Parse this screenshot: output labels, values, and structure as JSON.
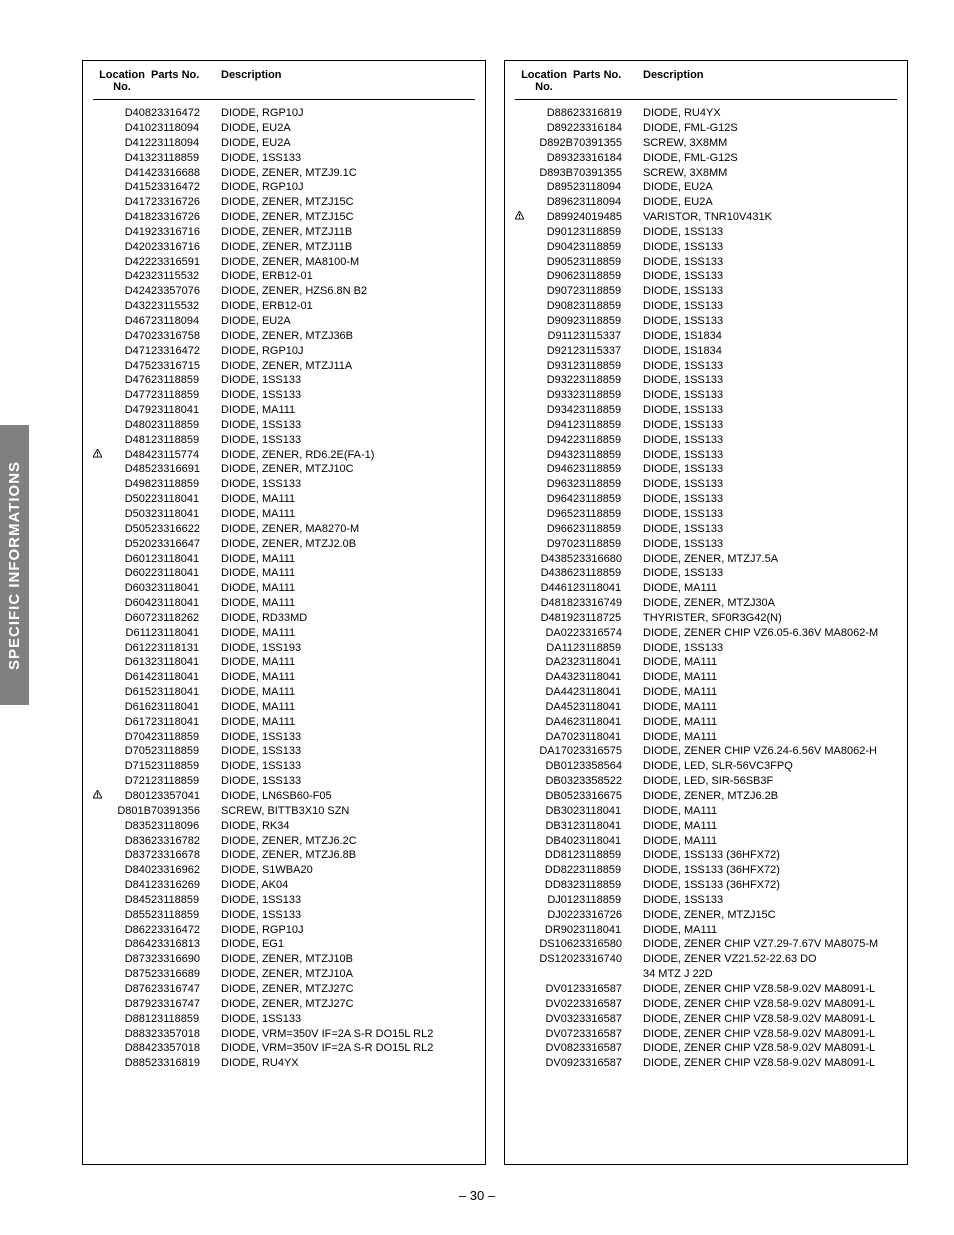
{
  "page_number": "– 30 –",
  "side_tab": "SPECIFIC INFORMATIONS",
  "columns": {
    "headers": {
      "location": "Location No.",
      "parts": "Parts No.",
      "description": "Description"
    }
  },
  "left": [
    {
      "w": false,
      "loc": "D408",
      "pn": "23316472",
      "desc": "DIODE, RGP10J"
    },
    {
      "w": false,
      "loc": "D410",
      "pn": "23118094",
      "desc": "DIODE, EU2A"
    },
    {
      "w": false,
      "loc": "D412",
      "pn": "23118094",
      "desc": "DIODE, EU2A"
    },
    {
      "w": false,
      "loc": "D413",
      "pn": "23118859",
      "desc": "DIODE, 1SS133"
    },
    {
      "w": false,
      "loc": "D414",
      "pn": "23316688",
      "desc": "DIODE, ZENER, MTZJ9.1C"
    },
    {
      "w": false,
      "loc": "D415",
      "pn": "23316472",
      "desc": "DIODE, RGP10J"
    },
    {
      "w": false,
      "loc": "D417",
      "pn": "23316726",
      "desc": "DIODE, ZENER, MTZJ15C"
    },
    {
      "w": false,
      "loc": "D418",
      "pn": "23316726",
      "desc": "DIODE, ZENER, MTZJ15C"
    },
    {
      "w": false,
      "loc": "D419",
      "pn": "23316716",
      "desc": "DIODE, ZENER, MTZJ11B"
    },
    {
      "w": false,
      "loc": "D420",
      "pn": "23316716",
      "desc": "DIODE, ZENER, MTZJ11B"
    },
    {
      "w": false,
      "loc": "D422",
      "pn": "23316591",
      "desc": "DIODE, ZENER, MA8100-M"
    },
    {
      "w": false,
      "loc": "D423",
      "pn": "23115532",
      "desc": "DIODE, ERB12-01"
    },
    {
      "w": false,
      "loc": "D424",
      "pn": "23357076",
      "desc": "DIODE, ZENER, HZS6.8N B2"
    },
    {
      "w": false,
      "loc": "D432",
      "pn": "23115532",
      "desc": "DIODE, ERB12-01"
    },
    {
      "w": false,
      "loc": "D467",
      "pn": "23118094",
      "desc": "DIODE, EU2A"
    },
    {
      "w": false,
      "loc": "D470",
      "pn": "23316758",
      "desc": "DIODE, ZENER, MTZJ36B"
    },
    {
      "w": false,
      "loc": "D471",
      "pn": "23316472",
      "desc": "DIODE, RGP10J"
    },
    {
      "w": false,
      "loc": "D475",
      "pn": "23316715",
      "desc": "DIODE, ZENER, MTZJ11A"
    },
    {
      "w": false,
      "loc": "D476",
      "pn": "23118859",
      "desc": "DIODE, 1SS133"
    },
    {
      "w": false,
      "loc": "D477",
      "pn": "23118859",
      "desc": "DIODE, 1SS133"
    },
    {
      "w": false,
      "loc": "D479",
      "pn": "23118041",
      "desc": "DIODE, MA111"
    },
    {
      "w": false,
      "loc": "D480",
      "pn": "23118859",
      "desc": "DIODE, 1SS133"
    },
    {
      "w": false,
      "loc": "D481",
      "pn": "23118859",
      "desc": "DIODE, 1SS133"
    },
    {
      "w": true,
      "loc": "D484",
      "pn": "23115774",
      "desc": "DIODE, ZENER, RD6.2E(FA-1)"
    },
    {
      "w": false,
      "loc": "D485",
      "pn": "23316691",
      "desc": "DIODE, ZENER, MTZJ10C"
    },
    {
      "w": false,
      "loc": "D498",
      "pn": "23118859",
      "desc": "DIODE, 1SS133"
    },
    {
      "w": false,
      "loc": "D502",
      "pn": "23118041",
      "desc": "DIODE, MA111"
    },
    {
      "w": false,
      "loc": "D503",
      "pn": "23118041",
      "desc": "DIODE, MA111"
    },
    {
      "w": false,
      "loc": "D505",
      "pn": "23316622",
      "desc": "DIODE, ZENER, MA8270-M"
    },
    {
      "w": false,
      "loc": "D520",
      "pn": "23316647",
      "desc": "DIODE, ZENER, MTZJ2.0B"
    },
    {
      "w": false,
      "loc": "D601",
      "pn": "23118041",
      "desc": "DIODE, MA111"
    },
    {
      "w": false,
      "loc": "D602",
      "pn": "23118041",
      "desc": "DIODE, MA111"
    },
    {
      "w": false,
      "loc": "D603",
      "pn": "23118041",
      "desc": "DIODE, MA111"
    },
    {
      "w": false,
      "loc": "D604",
      "pn": "23118041",
      "desc": "DIODE, MA111"
    },
    {
      "w": false,
      "loc": "D607",
      "pn": "23118262",
      "desc": "DIODE, RD33MD"
    },
    {
      "w": false,
      "loc": "D611",
      "pn": "23118041",
      "desc": "DIODE, MA111"
    },
    {
      "w": false,
      "loc": "D612",
      "pn": "23118131",
      "desc": "DIODE, 1SS193"
    },
    {
      "w": false,
      "loc": "D613",
      "pn": "23118041",
      "desc": "DIODE, MA111"
    },
    {
      "w": false,
      "loc": "D614",
      "pn": "23118041",
      "desc": "DIODE, MA111"
    },
    {
      "w": false,
      "loc": "D615",
      "pn": "23118041",
      "desc": "DIODE, MA111"
    },
    {
      "w": false,
      "loc": "D616",
      "pn": "23118041",
      "desc": "DIODE, MA111"
    },
    {
      "w": false,
      "loc": "D617",
      "pn": "23118041",
      "desc": "DIODE, MA111"
    },
    {
      "w": false,
      "loc": "D704",
      "pn": "23118859",
      "desc": "DIODE, 1SS133"
    },
    {
      "w": false,
      "loc": "D705",
      "pn": "23118859",
      "desc": "DIODE, 1SS133"
    },
    {
      "w": false,
      "loc": "D715",
      "pn": "23118859",
      "desc": "DIODE, 1SS133"
    },
    {
      "w": false,
      "loc": "D721",
      "pn": "23118859",
      "desc": "DIODE, 1SS133"
    },
    {
      "w": true,
      "loc": "D801",
      "pn": "23357041",
      "desc": "DIODE, LN6SB60-F05"
    },
    {
      "w": false,
      "loc": "D801B",
      "pn": "70391356",
      "desc": "SCREW, BITTB3X10 SZN"
    },
    {
      "w": false,
      "loc": "D835",
      "pn": "23118096",
      "desc": "DIODE, RK34"
    },
    {
      "w": false,
      "loc": "D836",
      "pn": "23316782",
      "desc": "DIODE, ZENER, MTZJ6.2C"
    },
    {
      "w": false,
      "loc": "D837",
      "pn": "23316678",
      "desc": "DIODE, ZENER, MTZJ6.8B"
    },
    {
      "w": false,
      "loc": "D840",
      "pn": "23316962",
      "desc": "DIODE, S1WBA20"
    },
    {
      "w": false,
      "loc": "D841",
      "pn": "23316269",
      "desc": "DIODE, AK04"
    },
    {
      "w": false,
      "loc": "D845",
      "pn": "23118859",
      "desc": "DIODE, 1SS133"
    },
    {
      "w": false,
      "loc": "D855",
      "pn": "23118859",
      "desc": "DIODE, 1SS133"
    },
    {
      "w": false,
      "loc": "D862",
      "pn": "23316472",
      "desc": "DIODE, RGP10J"
    },
    {
      "w": false,
      "loc": "D864",
      "pn": "23316813",
      "desc": "DIODE, EG1"
    },
    {
      "w": false,
      "loc": "D873",
      "pn": "23316690",
      "desc": "DIODE, ZENER, MTZJ10B"
    },
    {
      "w": false,
      "loc": "D875",
      "pn": "23316689",
      "desc": "DIODE, ZENER, MTZJ10A"
    },
    {
      "w": false,
      "loc": "D876",
      "pn": "23316747",
      "desc": "DIODE, ZENER, MTZJ27C"
    },
    {
      "w": false,
      "loc": "D879",
      "pn": "23316747",
      "desc": "DIODE, ZENER, MTZJ27C"
    },
    {
      "w": false,
      "loc": "D881",
      "pn": "23118859",
      "desc": "DIODE, 1SS133"
    },
    {
      "w": false,
      "loc": "D883",
      "pn": "23357018",
      "desc": "DIODE, VRM=350V IF=2A S-R DO15L RL2"
    },
    {
      "w": false,
      "loc": "D884",
      "pn": "23357018",
      "desc": "DIODE, VRM=350V IF=2A S-R DO15L RL2"
    },
    {
      "w": false,
      "loc": "D885",
      "pn": "23316819",
      "desc": "DIODE, RU4YX"
    }
  ],
  "right": [
    {
      "w": false,
      "loc": "D886",
      "pn": "23316819",
      "desc": "DIODE, RU4YX"
    },
    {
      "w": false,
      "loc": "D892",
      "pn": "23316184",
      "desc": "DIODE, FML-G12S"
    },
    {
      "w": false,
      "loc": "D892B",
      "pn": "70391355",
      "desc": "SCREW, 3X8MM"
    },
    {
      "w": false,
      "loc": "D893",
      "pn": "23316184",
      "desc": "DIODE, FML-G12S"
    },
    {
      "w": false,
      "loc": "D893B",
      "pn": "70391355",
      "desc": "SCREW, 3X8MM"
    },
    {
      "w": false,
      "loc": "D895",
      "pn": "23118094",
      "desc": "DIODE, EU2A"
    },
    {
      "w": false,
      "loc": "D896",
      "pn": "23118094",
      "desc": "DIODE, EU2A"
    },
    {
      "w": true,
      "loc": "D899",
      "pn": "24019485",
      "desc": "VARISTOR, TNR10V431K"
    },
    {
      "w": false,
      "loc": "D901",
      "pn": "23118859",
      "desc": "DIODE, 1SS133"
    },
    {
      "w": false,
      "loc": "D904",
      "pn": "23118859",
      "desc": "DIODE, 1SS133"
    },
    {
      "w": false,
      "loc": "D905",
      "pn": "23118859",
      "desc": "DIODE, 1SS133"
    },
    {
      "w": false,
      "loc": "D906",
      "pn": "23118859",
      "desc": "DIODE, 1SS133"
    },
    {
      "w": false,
      "loc": "D907",
      "pn": "23118859",
      "desc": "DIODE, 1SS133"
    },
    {
      "w": false,
      "loc": "D908",
      "pn": "23118859",
      "desc": "DIODE, 1SS133"
    },
    {
      "w": false,
      "loc": "D909",
      "pn": "23118859",
      "desc": "DIODE, 1SS133"
    },
    {
      "w": false,
      "loc": "D911",
      "pn": "23115337",
      "desc": "DIODE, 1S1834"
    },
    {
      "w": false,
      "loc": "D921",
      "pn": "23115337",
      "desc": "DIODE, 1S1834"
    },
    {
      "w": false,
      "loc": "D931",
      "pn": "23118859",
      "desc": "DIODE, 1SS133"
    },
    {
      "w": false,
      "loc": "D932",
      "pn": "23118859",
      "desc": "DIODE, 1SS133"
    },
    {
      "w": false,
      "loc": "D933",
      "pn": "23118859",
      "desc": "DIODE, 1SS133"
    },
    {
      "w": false,
      "loc": "D934",
      "pn": "23118859",
      "desc": "DIODE, 1SS133"
    },
    {
      "w": false,
      "loc": "D941",
      "pn": "23118859",
      "desc": "DIODE, 1SS133"
    },
    {
      "w": false,
      "loc": "D942",
      "pn": "23118859",
      "desc": "DIODE, 1SS133"
    },
    {
      "w": false,
      "loc": "D943",
      "pn": "23118859",
      "desc": "DIODE, 1SS133"
    },
    {
      "w": false,
      "loc": "D946",
      "pn": "23118859",
      "desc": "DIODE, 1SS133"
    },
    {
      "w": false,
      "loc": "D963",
      "pn": "23118859",
      "desc": "DIODE, 1SS133"
    },
    {
      "w": false,
      "loc": "D964",
      "pn": "23118859",
      "desc": "DIODE, 1SS133"
    },
    {
      "w": false,
      "loc": "D965",
      "pn": "23118859",
      "desc": "DIODE, 1SS133"
    },
    {
      "w": false,
      "loc": "D966",
      "pn": "23118859",
      "desc": "DIODE, 1SS133"
    },
    {
      "w": false,
      "loc": "D970",
      "pn": "23118859",
      "desc": "DIODE, 1SS133"
    },
    {
      "w": false,
      "loc": "D4385",
      "pn": "23316680",
      "desc": "DIODE, ZENER, MTZJ7.5A"
    },
    {
      "w": false,
      "loc": "D4386",
      "pn": "23118859",
      "desc": "DIODE, 1SS133"
    },
    {
      "w": false,
      "loc": "D4461",
      "pn": "23118041",
      "desc": "DIODE, MA111"
    },
    {
      "w": false,
      "loc": "D4818",
      "pn": "23316749",
      "desc": "DIODE, ZENER, MTZJ30A"
    },
    {
      "w": false,
      "loc": "D4819",
      "pn": "23118725",
      "desc": "THYRISTER, SF0R3G42(N)"
    },
    {
      "w": false,
      "loc": "DA02",
      "pn": "23316574",
      "desc": "DIODE, ZENER CHIP VZ6.05-6.36V MA8062-M"
    },
    {
      "w": false,
      "loc": "DA11",
      "pn": "23118859",
      "desc": "DIODE, 1SS133"
    },
    {
      "w": false,
      "loc": "DA23",
      "pn": "23118041",
      "desc": "DIODE, MA111"
    },
    {
      "w": false,
      "loc": "DA43",
      "pn": "23118041",
      "desc": "DIODE, MA111"
    },
    {
      "w": false,
      "loc": "DA44",
      "pn": "23118041",
      "desc": "DIODE, MA111"
    },
    {
      "w": false,
      "loc": "DA45",
      "pn": "23118041",
      "desc": "DIODE, MA111"
    },
    {
      "w": false,
      "loc": "DA46",
      "pn": "23118041",
      "desc": "DIODE, MA111"
    },
    {
      "w": false,
      "loc": "DA70",
      "pn": "23118041",
      "desc": "DIODE, MA111"
    },
    {
      "w": false,
      "loc": "DA170",
      "pn": "23316575",
      "desc": "DIODE, ZENER CHIP VZ6.24-6.56V MA8062-H"
    },
    {
      "w": false,
      "loc": "DB01",
      "pn": "23358564",
      "desc": "DIODE, LED, SLR-56VC3FPQ"
    },
    {
      "w": false,
      "loc": "DB03",
      "pn": "23358522",
      "desc": "DIODE, LED, SIR-56SB3F"
    },
    {
      "w": false,
      "loc": "DB05",
      "pn": "23316675",
      "desc": "DIODE, ZENER, MTZJ6.2B"
    },
    {
      "w": false,
      "loc": "DB30",
      "pn": "23118041",
      "desc": "DIODE, MA111"
    },
    {
      "w": false,
      "loc": "DB31",
      "pn": "23118041",
      "desc": "DIODE, MA111"
    },
    {
      "w": false,
      "loc": "DB40",
      "pn": "23118041",
      "desc": "DIODE, MA111"
    },
    {
      "w": false,
      "loc": "DD81",
      "pn": "23118859",
      "desc": "DIODE, 1SS133 (36HFX72)"
    },
    {
      "w": false,
      "loc": "DD82",
      "pn": "23118859",
      "desc": "DIODE, 1SS133 (36HFX72)"
    },
    {
      "w": false,
      "loc": "DD83",
      "pn": "23118859",
      "desc": "DIODE, 1SS133 (36HFX72)"
    },
    {
      "w": false,
      "loc": "DJ01",
      "pn": "23118859",
      "desc": "DIODE, 1SS133"
    },
    {
      "w": false,
      "loc": "DJ02",
      "pn": "23316726",
      "desc": "DIODE, ZENER, MTZJ15C"
    },
    {
      "w": false,
      "loc": "DR90",
      "pn": "23118041",
      "desc": "DIODE, MA111"
    },
    {
      "w": false,
      "loc": "DS106",
      "pn": "23316580",
      "desc": "DIODE, ZENER CHIP VZ7.29-7.67V MA8075-M"
    },
    {
      "w": false,
      "loc": "DS120",
      "pn": "23316740",
      "desc": "DIODE, ZENER VZ21.52-22.63 DO"
    },
    {
      "w": false,
      "loc": "",
      "pn": "",
      "desc": "34 MTZ J 22D"
    },
    {
      "w": false,
      "loc": "DV01",
      "pn": "23316587",
      "desc": "DIODE, ZENER CHIP VZ8.58-9.02V MA8091-L"
    },
    {
      "w": false,
      "loc": "DV02",
      "pn": "23316587",
      "desc": "DIODE, ZENER CHIP VZ8.58-9.02V MA8091-L"
    },
    {
      "w": false,
      "loc": "DV03",
      "pn": "23316587",
      "desc": "DIODE, ZENER CHIP VZ8.58-9.02V MA8091-L"
    },
    {
      "w": false,
      "loc": "DV07",
      "pn": "23316587",
      "desc": "DIODE, ZENER CHIP VZ8.58-9.02V MA8091-L"
    },
    {
      "w": false,
      "loc": "DV08",
      "pn": "23316587",
      "desc": "DIODE, ZENER CHIP VZ8.58-9.02V MA8091-L"
    },
    {
      "w": false,
      "loc": "DV09",
      "pn": "23316587",
      "desc": "DIODE, ZENER CHIP VZ8.58-9.02V MA8091-L"
    }
  ]
}
